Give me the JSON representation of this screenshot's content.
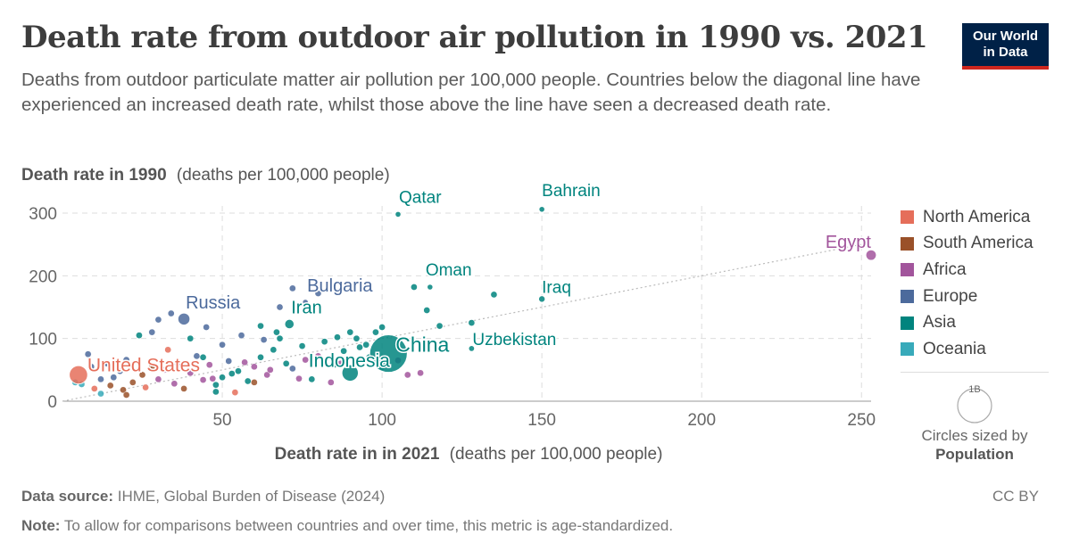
{
  "header": {
    "title": "Death rate from outdoor air pollution in 1990 vs. 2021",
    "subtitle": "Deaths from outdoor particulate matter air pollution per 100,000 people. Countries below the diagonal line have experienced an increased death rate, whilst those above the line have seen a decreased death rate."
  },
  "logo": {
    "line1": "Our World",
    "line2": "in Data",
    "bg_color": "#002147",
    "accent_color": "#ce261e"
  },
  "chart_data": {
    "type": "scatter",
    "title": "Death rate from outdoor air pollution in 1990 vs. 2021",
    "ylabel_bold": "Death rate in 1990",
    "ylabel_unit": "(deaths per 100,000 people)",
    "xlabel_bold": "Death rate in in 2021",
    "xlabel_unit": "(deaths per 100,000 people)",
    "xlim": [
      0,
      253
    ],
    "ylim": [
      0,
      300
    ],
    "x_ticks": [
      50,
      100,
      150,
      200,
      250
    ],
    "y_ticks": [
      0,
      100,
      200,
      300
    ],
    "grid": true,
    "diagonal_line": true,
    "legend_position": "right",
    "size_variable": "Population",
    "size_legend_value": "1B",
    "size_legend_caption": "Circles sized by",
    "regions": [
      {
        "name": "North America",
        "color": "#e56e5a"
      },
      {
        "name": "South America",
        "color": "#9a5129"
      },
      {
        "name": "Africa",
        "color": "#a2559c"
      },
      {
        "name": "Europe",
        "color": "#4c6a9c"
      },
      {
        "name": "Asia",
        "color": "#00847e"
      },
      {
        "name": "Oceania",
        "color": "#38aaba"
      }
    ],
    "labeled_points": [
      {
        "label": "China",
        "x": 102,
        "y": 76,
        "region": "Asia",
        "pop": 1.43
      },
      {
        "label": "Indonesia",
        "x": 90,
        "y": 45,
        "region": "Asia",
        "pop": 0.27
      },
      {
        "label": "United States",
        "x": 5,
        "y": 42,
        "region": "North America",
        "pop": 0.34
      },
      {
        "label": "Russia",
        "x": 38,
        "y": 131,
        "region": "Europe",
        "pop": 0.145
      },
      {
        "label": "Iran",
        "x": 71,
        "y": 123,
        "region": "Asia",
        "pop": 0.088
      },
      {
        "label": "Bulgaria",
        "x": 76,
        "y": 158,
        "region": "Europe",
        "pop": 0.007
      },
      {
        "label": "Egypt",
        "x": 253,
        "y": 233,
        "region": "Africa",
        "pop": 0.11
      },
      {
        "label": "Qatar",
        "x": 105,
        "y": 298,
        "region": "Asia",
        "pop": 0.0027
      },
      {
        "label": "Bahrain",
        "x": 150,
        "y": 316,
        "region": "Asia",
        "pop": 0.0015
      },
      {
        "label": "Oman",
        "x": 115,
        "y": 182,
        "region": "Asia",
        "pop": 0.0045
      },
      {
        "label": "Iraq",
        "x": 150,
        "y": 163,
        "region": "Asia",
        "pop": 0.043
      },
      {
        "label": "Uzbekistan",
        "x": 128,
        "y": 84,
        "region": "Asia",
        "pop": 0.035
      }
    ],
    "unlabeled_points": [
      [
        4,
        30,
        "Oceania"
      ],
      [
        6,
        27,
        "Oceania"
      ],
      [
        9,
        55,
        "Europe"
      ],
      [
        12,
        35,
        "Europe"
      ],
      [
        8,
        75,
        "Europe"
      ],
      [
        14,
        60,
        "Europe"
      ],
      [
        16,
        38,
        "Europe"
      ],
      [
        10,
        20,
        "North America"
      ],
      [
        18,
        48,
        "Europe"
      ],
      [
        20,
        66,
        "Europe"
      ],
      [
        22,
        30,
        "South America"
      ],
      [
        25,
        42,
        "South America"
      ],
      [
        28,
        55,
        "South America"
      ],
      [
        15,
        25,
        "South America"
      ],
      [
        19,
        18,
        "South America"
      ],
      [
        30,
        35,
        "Africa"
      ],
      [
        32,
        50,
        "Africa"
      ],
      [
        35,
        28,
        "Africa"
      ],
      [
        36,
        60,
        "Africa"
      ],
      [
        40,
        45,
        "Africa"
      ],
      [
        42,
        72,
        "Europe"
      ],
      [
        44,
        34,
        "Africa"
      ],
      [
        46,
        58,
        "Africa"
      ],
      [
        48,
        26,
        "Asia"
      ],
      [
        50,
        38,
        "Asia"
      ],
      [
        52,
        64,
        "Europe"
      ],
      [
        55,
        48,
        "Asia"
      ],
      [
        58,
        32,
        "Asia"
      ],
      [
        60,
        55,
        "Africa"
      ],
      [
        62,
        70,
        "Asia"
      ],
      [
        64,
        42,
        "Africa"
      ],
      [
        66,
        82,
        "Asia"
      ],
      [
        68,
        100,
        "Asia"
      ],
      [
        70,
        60,
        "Asia"
      ],
      [
        72,
        52,
        "Europe"
      ],
      [
        75,
        88,
        "Asia"
      ],
      [
        78,
        35,
        "Asia"
      ],
      [
        80,
        72,
        "Africa"
      ],
      [
        82,
        95,
        "Asia"
      ],
      [
        85,
        58,
        "Asia"
      ],
      [
        88,
        80,
        "Asia"
      ],
      [
        92,
        100,
        "Asia"
      ],
      [
        95,
        90,
        "Asia"
      ],
      [
        98,
        110,
        "Asia"
      ],
      [
        105,
        65,
        "Africa"
      ],
      [
        108,
        42,
        "Africa"
      ],
      [
        110,
        182,
        "Asia"
      ],
      [
        114,
        145,
        "Asia"
      ],
      [
        118,
        120,
        "Asia"
      ],
      [
        128,
        125,
        "Asia"
      ],
      [
        135,
        170,
        "Asia"
      ],
      [
        72,
        180,
        "Europe"
      ],
      [
        80,
        172,
        "Europe"
      ],
      [
        68,
        150,
        "Europe"
      ],
      [
        30,
        130,
        "Europe"
      ],
      [
        34,
        140,
        "Europe"
      ],
      [
        28,
        110,
        "Europe"
      ],
      [
        45,
        118,
        "Europe"
      ],
      [
        50,
        90,
        "Europe"
      ],
      [
        48,
        15,
        "Asia"
      ],
      [
        24,
        105,
        "Asia"
      ],
      [
        56,
        105,
        "Europe"
      ],
      [
        40,
        100,
        "Asia"
      ],
      [
        63,
        98,
        "Europe"
      ],
      [
        86,
        102,
        "Asia"
      ],
      [
        60,
        30,
        "South America"
      ],
      [
        38,
        20,
        "South America"
      ],
      [
        20,
        10,
        "South America"
      ],
      [
        12,
        12,
        "Oceania"
      ],
      [
        26,
        22,
        "North America"
      ],
      [
        33,
        82,
        "North America"
      ],
      [
        54,
        14,
        "North America"
      ],
      [
        47,
        36,
        "Africa"
      ],
      [
        57,
        62,
        "Africa"
      ],
      [
        65,
        50,
        "Africa"
      ],
      [
        74,
        36,
        "Africa"
      ],
      [
        76,
        66,
        "Africa"
      ],
      [
        84,
        30,
        "Africa"
      ],
      [
        90,
        110,
        "Asia"
      ],
      [
        96,
        70,
        "Asia"
      ],
      [
        100,
        55,
        "Asia"
      ],
      [
        93,
        86,
        "Asia"
      ],
      [
        62,
        120,
        "Asia"
      ],
      [
        67,
        110,
        "Asia"
      ],
      [
        44,
        70,
        "Asia"
      ],
      [
        53,
        44,
        "Asia"
      ],
      [
        87,
        60,
        "Africa"
      ],
      [
        112,
        45,
        "Africa"
      ],
      [
        100,
        118,
        "Asia"
      ]
    ]
  },
  "footer": {
    "source_label": "Data source:",
    "source_text": "IHME, Global Burden of Disease (2024)",
    "note_label": "Note:",
    "note_text": "To allow for comparisons between countries and over time, this metric is age-standardized.",
    "license": "CC BY"
  }
}
